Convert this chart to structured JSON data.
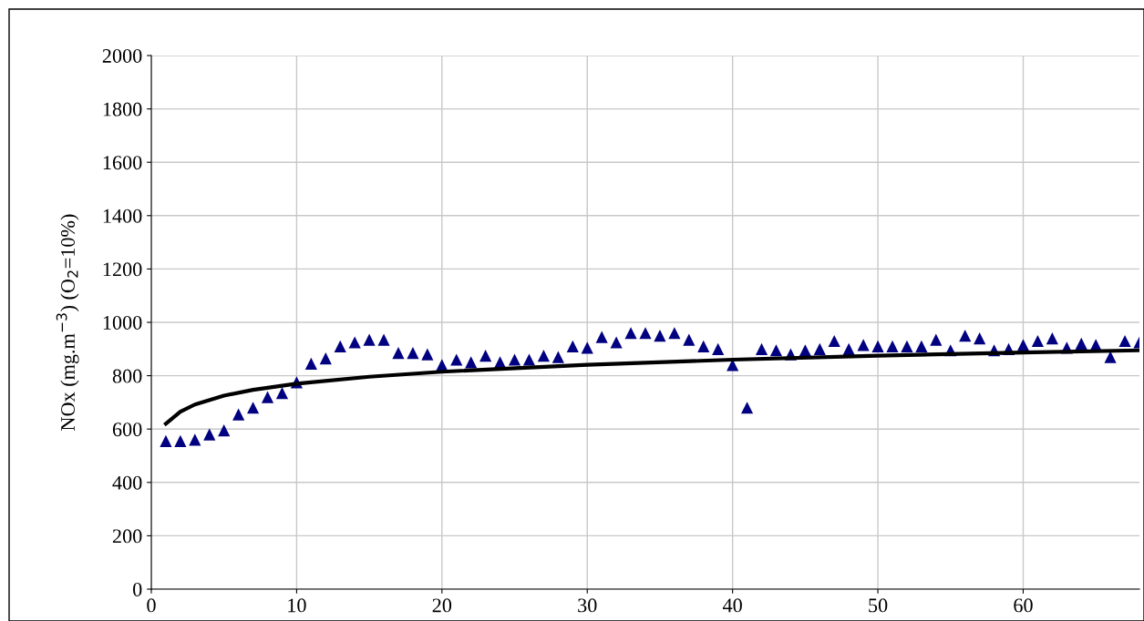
{
  "chart_data": {
    "type": "scatter",
    "ylabel": "NOx (mg.m$^{−3}$) (O$_{2}$=10%)",
    "xlim": [
      0,
      68
    ],
    "xticks": [
      0,
      10,
      20,
      30,
      40,
      50,
      60
    ],
    "ylim": [
      0,
      2000
    ],
    "yticks": [
      0,
      200,
      400,
      600,
      800,
      1000,
      1200,
      1400,
      1600,
      1800,
      2000
    ],
    "grid": true,
    "marker": "triangle",
    "series": [
      {
        "color": "#000080",
        "x": [
          1,
          2,
          3,
          4,
          5,
          6,
          7,
          8,
          9,
          10,
          11,
          12,
          13,
          14,
          15,
          16,
          17,
          18,
          19,
          20,
          21,
          22,
          23,
          24,
          25,
          26,
          27,
          28,
          29,
          30,
          31,
          32,
          33,
          34,
          35,
          36,
          37,
          38,
          39,
          40,
          41,
          42,
          43,
          44,
          45,
          46,
          47,
          48,
          49,
          50,
          51,
          52,
          53,
          54,
          55,
          56,
          57,
          58,
          59,
          60,
          61,
          62,
          63,
          64,
          65,
          66,
          67,
          68
        ],
        "values": [
          555,
          555,
          560,
          580,
          595,
          655,
          680,
          720,
          735,
          775,
          845,
          865,
          910,
          925,
          935,
          935,
          885,
          885,
          880,
          840,
          860,
          850,
          875,
          850,
          860,
          860,
          875,
          870,
          910,
          905,
          945,
          925,
          960,
          960,
          950,
          960,
          935,
          910,
          900,
          840,
          680,
          900,
          895,
          880,
          895,
          900,
          930,
          900,
          915,
          910,
          910,
          910,
          910,
          935,
          895,
          950,
          940,
          895,
          900,
          915,
          930,
          940,
          905,
          920,
          915,
          870,
          930,
          925
        ]
      },
      {
        "type": "line",
        "color": "#000000",
        "marker": "none",
        "x": [
          1,
          2,
          3,
          5,
          7,
          10,
          15,
          20,
          30,
          40,
          50,
          60,
          68
        ],
        "values": [
          620,
          665,
          692,
          725,
          747,
          770,
          796,
          815,
          841,
          860,
          875,
          887,
          895
        ]
      }
    ]
  }
}
